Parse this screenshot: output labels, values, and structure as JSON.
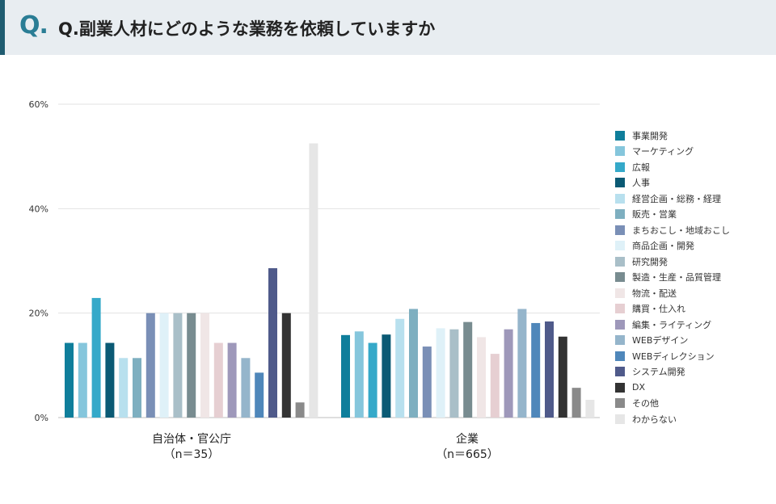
{
  "header": {
    "q_mark": "Q.",
    "title": "Q.副業人材にどのような業務を依頼していますか"
  },
  "colors": {
    "header_bg": "#e8edf1",
    "accent": "#2a7d95",
    "grid": "#e2e2e2"
  },
  "chart_data": {
    "type": "bar",
    "title": "Q.副業人材にどのような業務を依頼していますか",
    "ylim": [
      0,
      60
    ],
    "yticks": [
      "0%",
      "20%",
      "40%",
      "60%"
    ],
    "ytick_values": [
      0,
      20,
      40,
      60
    ],
    "grid": true,
    "legend_position": "right",
    "categories": [
      {
        "name": "自治体・官公庁",
        "n": "（n＝35）"
      },
      {
        "name": "企業",
        "n": "（n＝665）"
      }
    ],
    "series": [
      {
        "name": "事業開発",
        "color": "#0f7e9b",
        "values": [
          14.3,
          15.8
        ]
      },
      {
        "name": "マーケティング",
        "color": "#85c6dc",
        "values": [
          14.3,
          16.5
        ]
      },
      {
        "name": "広報",
        "color": "#35a9c9",
        "values": [
          22.9,
          14.3
        ]
      },
      {
        "name": "人事",
        "color": "#0b5a74",
        "values": [
          14.3,
          15.9
        ]
      },
      {
        "name": "経営企画・総務・経理",
        "color": "#b8e0ee",
        "values": [
          11.4,
          18.9
        ]
      },
      {
        "name": "販売・営業",
        "color": "#7eafc0",
        "values": [
          11.4,
          20.8
        ]
      },
      {
        "name": "まちおこし・地域おこし",
        "color": "#7a8fb6",
        "values": [
          20.0,
          13.6
        ]
      },
      {
        "name": "商品企画・開発",
        "color": "#dff1f8",
        "values": [
          20.0,
          17.1
        ]
      },
      {
        "name": "研究開発",
        "color": "#a9bfc8",
        "values": [
          20.0,
          16.9
        ]
      },
      {
        "name": "製造・生産・品質管理",
        "color": "#788c90",
        "values": [
          20.0,
          18.3
        ]
      },
      {
        "name": "物流・配送",
        "color": "#f0e6e6",
        "values": [
          20.0,
          15.4
        ]
      },
      {
        "name": "購買・仕入れ",
        "color": "#e6cfd2",
        "values": [
          14.3,
          12.2
        ]
      },
      {
        "name": "編集・ライティング",
        "color": "#9e98ba",
        "values": [
          14.3,
          16.9
        ]
      },
      {
        "name": "WEBデザイン",
        "color": "#95b5cb",
        "values": [
          11.4,
          20.8
        ]
      },
      {
        "name": "WEBディレクション",
        "color": "#4f87ba",
        "values": [
          8.6,
          18.1
        ]
      },
      {
        "name": "システム開発",
        "color": "#4f5a8a",
        "values": [
          28.6,
          18.4
        ]
      },
      {
        "name": "DX",
        "color": "#333333",
        "values": [
          20.0,
          15.5
        ]
      },
      {
        "name": "その他",
        "color": "#8a8a8a",
        "values": [
          2.9,
          5.7
        ]
      },
      {
        "name": "わからない",
        "color": "#e6e6e6",
        "values": [
          52.5,
          3.4
        ]
      }
    ]
  }
}
